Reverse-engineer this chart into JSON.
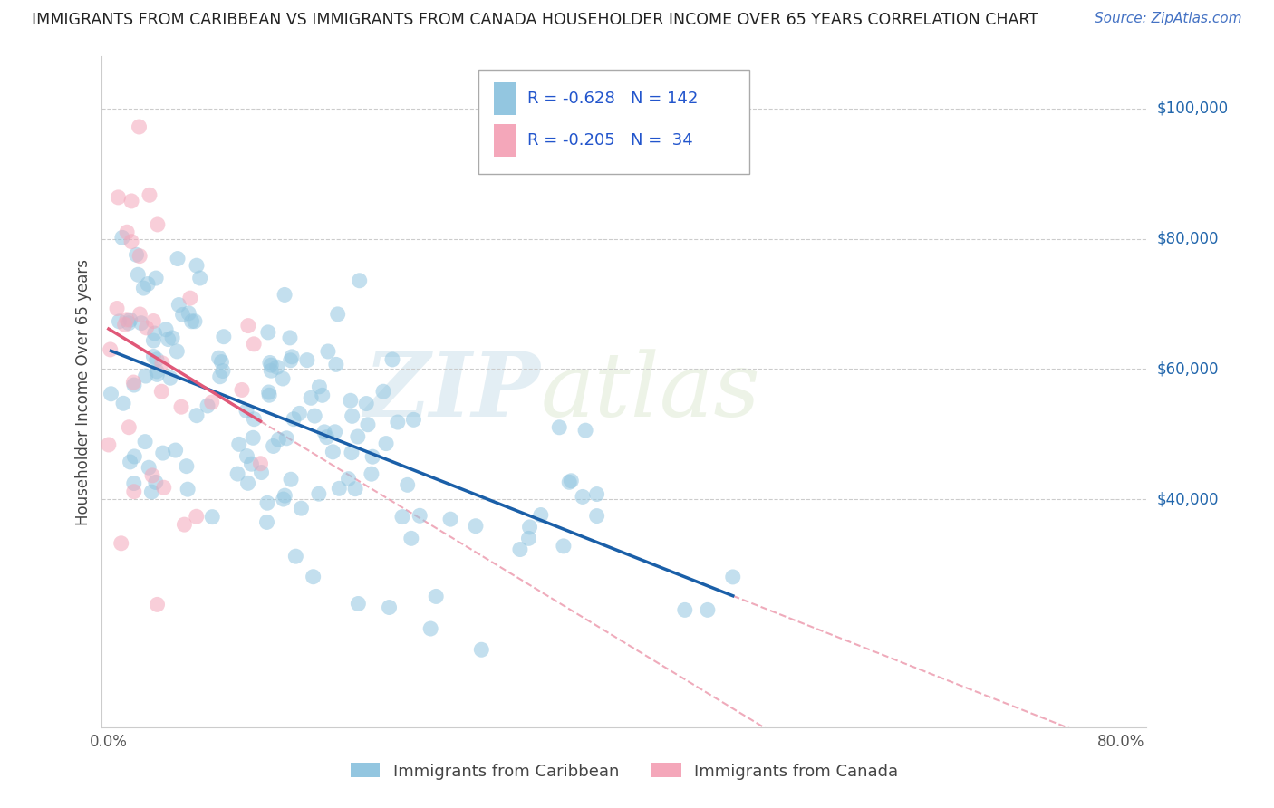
{
  "title": "IMMIGRANTS FROM CARIBBEAN VS IMMIGRANTS FROM CANADA HOUSEHOLDER INCOME OVER 65 YEARS CORRELATION CHART",
  "source": "Source: ZipAtlas.com",
  "ylabel": "Householder Income Over 65 years",
  "xlim": [
    0.0,
    0.82
  ],
  "ylim": [
    5000,
    108000
  ],
  "ytick_vals": [
    40000,
    60000,
    80000,
    100000
  ],
  "ytick_labels": [
    "$40,000",
    "$60,000",
    "$80,000",
    "$100,000"
  ],
  "legend1_label": "Immigrants from Caribbean",
  "legend2_label": "Immigrants from Canada",
  "R1": -0.628,
  "N1": 142,
  "R2": -0.205,
  "N2": 34,
  "color_caribbean": "#93c6e0",
  "color_canada": "#f4a7ba",
  "color_caribbean_line": "#1a5fa8",
  "color_canada_line": "#e05878",
  "watermark_zip": "ZIP",
  "watermark_atlas": "atlas",
  "seed1": 12,
  "seed2": 77
}
